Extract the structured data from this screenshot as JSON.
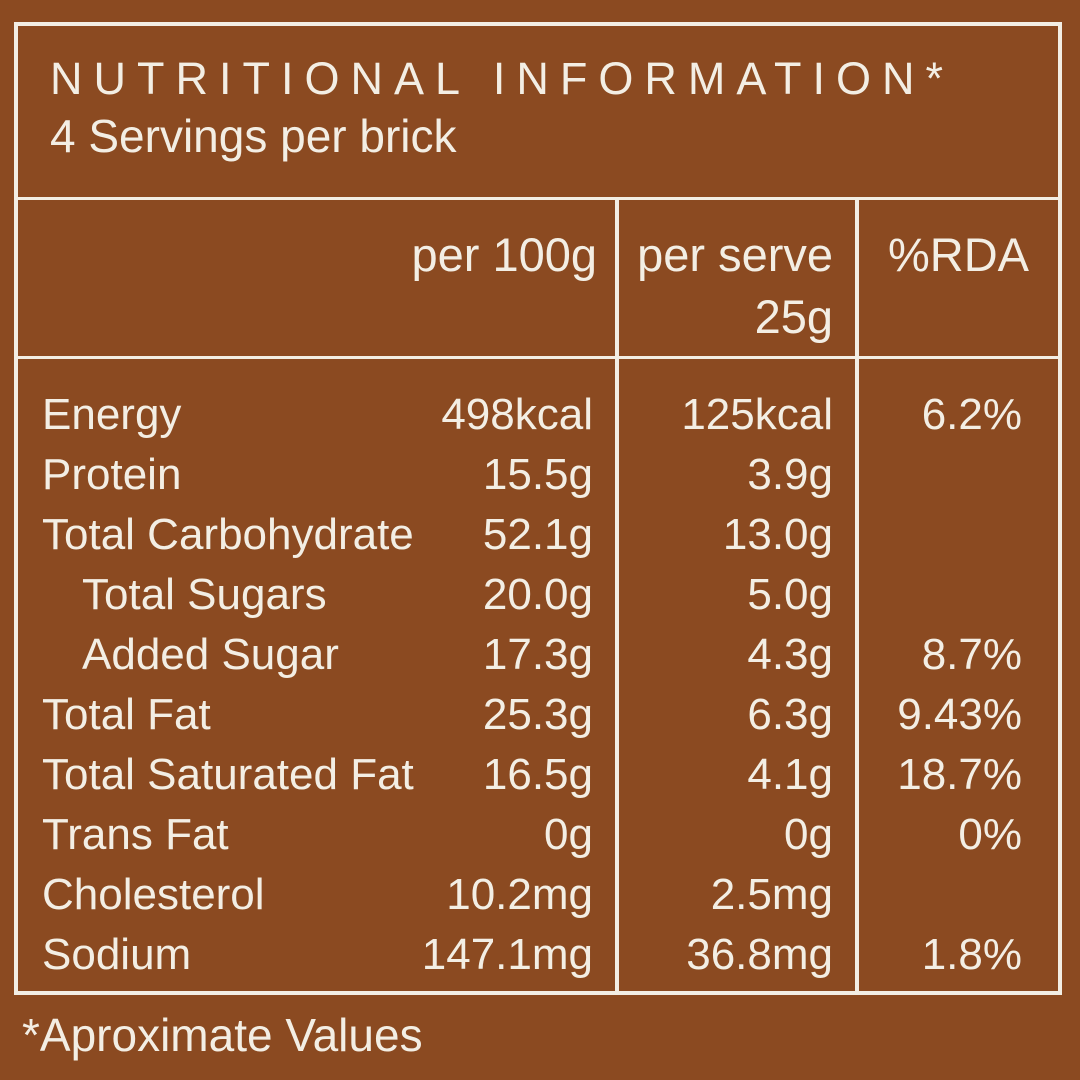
{
  "colors": {
    "background": "#8B4A21",
    "foreground": "#F3EEE4"
  },
  "header": {
    "title": "NUTRITIONAL INFORMATION*",
    "servings": "4 Servings per brick"
  },
  "table": {
    "columns": [
      {
        "label": "per 100g"
      },
      {
        "label": "per serve",
        "sub": "25g"
      },
      {
        "label": "%RDA"
      }
    ],
    "rows": [
      {
        "name": "Energy",
        "indent": false,
        "per_100g": "498kcal",
        "per_serve": "125kcal",
        "rda": "6.2%"
      },
      {
        "name": "Protein",
        "indent": false,
        "per_100g": "15.5g",
        "per_serve": "3.9g",
        "rda": ""
      },
      {
        "name": "Total Carbohydrate",
        "indent": false,
        "per_100g": "52.1g",
        "per_serve": "13.0g",
        "rda": ""
      },
      {
        "name": "Total Sugars",
        "indent": true,
        "per_100g": "20.0g",
        "per_serve": "5.0g",
        "rda": ""
      },
      {
        "name": "Added Sugar",
        "indent": true,
        "per_100g": "17.3g",
        "per_serve": "4.3g",
        "rda": "8.7%"
      },
      {
        "name": "Total Fat",
        "indent": false,
        "per_100g": "25.3g",
        "per_serve": "6.3g",
        "rda": "9.43%"
      },
      {
        "name": "Total Saturated Fat",
        "indent": false,
        "per_100g": "16.5g",
        "per_serve": "4.1g",
        "rda": "18.7%"
      },
      {
        "name": "Trans Fat",
        "indent": false,
        "per_100g": "0g",
        "per_serve": "0g",
        "rda": "0%"
      },
      {
        "name": "Cholesterol",
        "indent": false,
        "per_100g": "10.2mg",
        "per_serve": "2.5mg",
        "rda": ""
      },
      {
        "name": "Sodium",
        "indent": false,
        "per_100g": "147.1mg",
        "per_serve": "36.8mg",
        "rda": "1.8%"
      }
    ]
  },
  "footnote": "*Aproximate Values"
}
